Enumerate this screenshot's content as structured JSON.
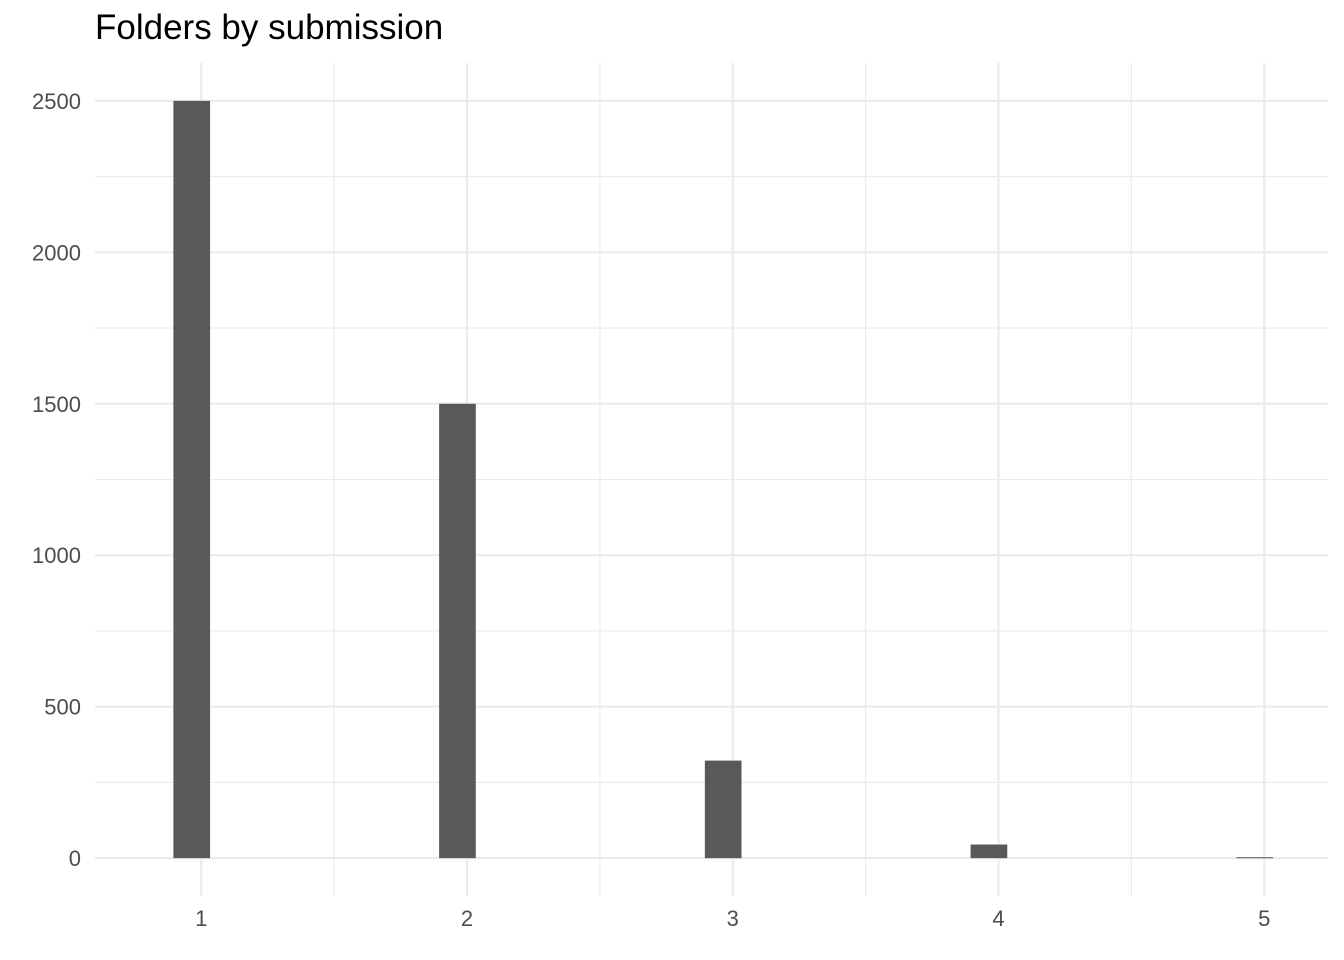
{
  "chart_data": {
    "type": "bar",
    "title": "Folders by submission",
    "xlabel": "",
    "ylabel": "",
    "x": [
      1,
      2,
      3,
      4,
      5
    ],
    "values": [
      2500,
      1500,
      322,
      45,
      3
    ],
    "x_ticks": [
      "1",
      "2",
      "3",
      "4",
      "5"
    ],
    "y_ticks": [
      "0",
      "500",
      "1000",
      "1500",
      "2000",
      "2500"
    ],
    "xlim": [
      0.6,
      5.24
    ],
    "ylim": [
      -125,
      2625
    ],
    "bar_color": "#595959",
    "grid": true,
    "legend": "none"
  }
}
